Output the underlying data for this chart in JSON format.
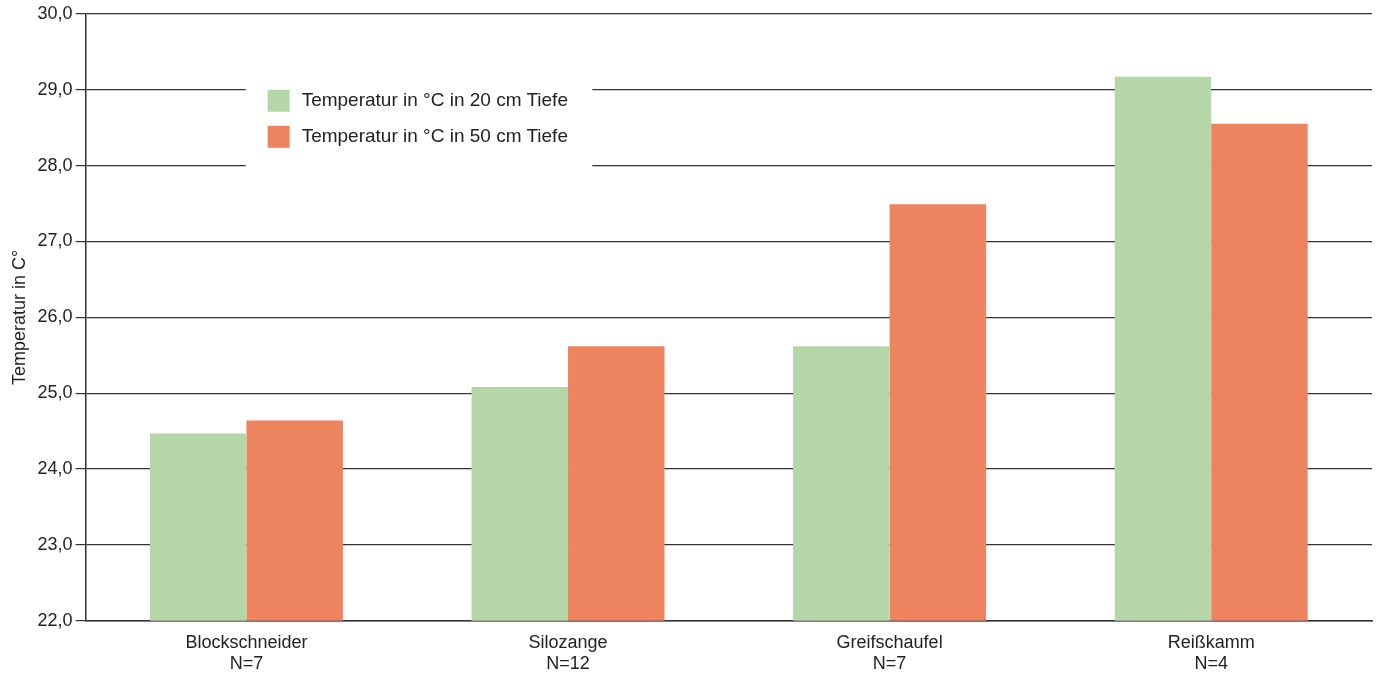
{
  "chart_data": {
    "type": "bar",
    "ylabel": "Temperatur in C°",
    "categories": [
      "Blockschneider\nN=7",
      "Silozange\nN=12",
      "Greifschaufel\nN=7",
      "Reißkamm\nN=4"
    ],
    "series": [
      {
        "name": "Temperatur in °C in 20 cm Tiefe",
        "color": "#b5d7a8",
        "values": [
          24.47,
          25.08,
          25.62,
          29.17
        ]
      },
      {
        "name": "Temperatur in °C in 50 cm Tiefe",
        "color": "#ed835f",
        "values": [
          24.64,
          25.62,
          27.49,
          28.55
        ]
      }
    ],
    "ylim": [
      22,
      30
    ],
    "yticks": [
      {
        "value": 22,
        "label": "22,0"
      },
      {
        "value": 23,
        "label": "23,0"
      },
      {
        "value": 24,
        "label": "24,0"
      },
      {
        "value": 25,
        "label": "25,0"
      },
      {
        "value": 26,
        "label": "26,0"
      },
      {
        "value": 27,
        "label": "27,0"
      },
      {
        "value": 28,
        "label": "28,0"
      },
      {
        "value": 29,
        "label": "29,0"
      },
      {
        "value": 30,
        "label": "30,0"
      }
    ],
    "grid": "y",
    "legend": "top left"
  }
}
